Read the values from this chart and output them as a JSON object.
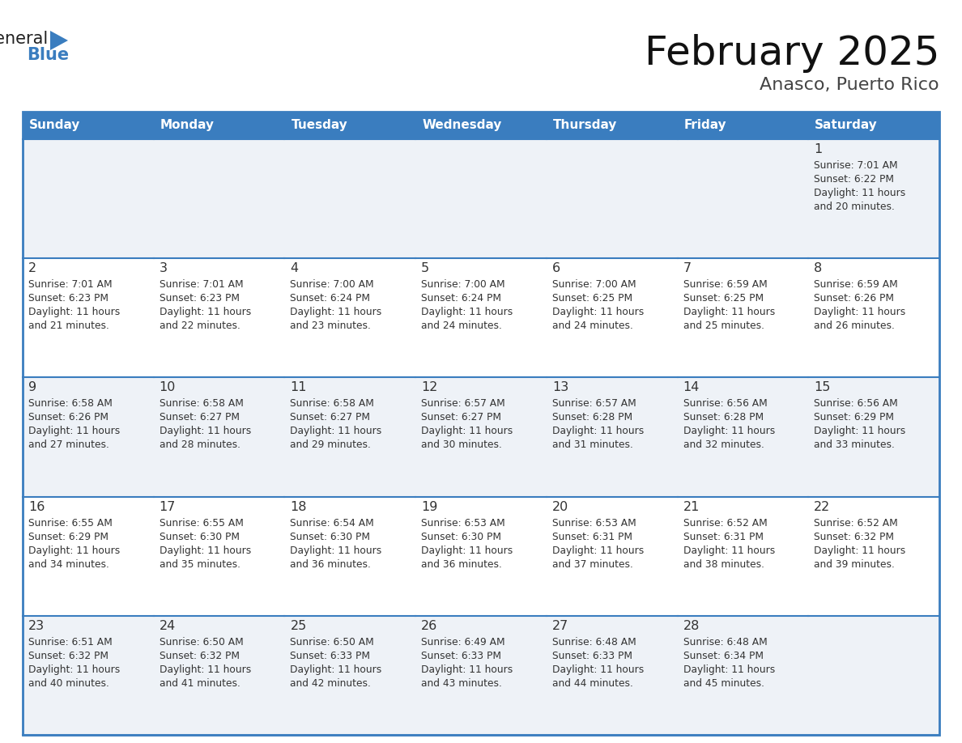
{
  "title": "February 2025",
  "subtitle": "Anasco, Puerto Rico",
  "header_bg_color": "#3a7dbf",
  "header_text_color": "#ffffff",
  "odd_row_bg": "#eef2f7",
  "even_row_bg": "#ffffff",
  "border_color": "#3a7dbf",
  "text_color": "#333333",
  "days_of_week": [
    "Sunday",
    "Monday",
    "Tuesday",
    "Wednesday",
    "Thursday",
    "Friday",
    "Saturday"
  ],
  "calendar": [
    [
      {
        "day": null,
        "sunrise": null,
        "sunset": null,
        "daylight": null
      },
      {
        "day": null,
        "sunrise": null,
        "sunset": null,
        "daylight": null
      },
      {
        "day": null,
        "sunrise": null,
        "sunset": null,
        "daylight": null
      },
      {
        "day": null,
        "sunrise": null,
        "sunset": null,
        "daylight": null
      },
      {
        "day": null,
        "sunrise": null,
        "sunset": null,
        "daylight": null
      },
      {
        "day": null,
        "sunrise": null,
        "sunset": null,
        "daylight": null
      },
      {
        "day": 1,
        "sunrise": "7:01 AM",
        "sunset": "6:22 PM",
        "daylight": "11 hours and 20 minutes."
      }
    ],
    [
      {
        "day": 2,
        "sunrise": "7:01 AM",
        "sunset": "6:23 PM",
        "daylight": "11 hours and 21 minutes."
      },
      {
        "day": 3,
        "sunrise": "7:01 AM",
        "sunset": "6:23 PM",
        "daylight": "11 hours and 22 minutes."
      },
      {
        "day": 4,
        "sunrise": "7:00 AM",
        "sunset": "6:24 PM",
        "daylight": "11 hours and 23 minutes."
      },
      {
        "day": 5,
        "sunrise": "7:00 AM",
        "sunset": "6:24 PM",
        "daylight": "11 hours and 24 minutes."
      },
      {
        "day": 6,
        "sunrise": "7:00 AM",
        "sunset": "6:25 PM",
        "daylight": "11 hours and 24 minutes."
      },
      {
        "day": 7,
        "sunrise": "6:59 AM",
        "sunset": "6:25 PM",
        "daylight": "11 hours and 25 minutes."
      },
      {
        "day": 8,
        "sunrise": "6:59 AM",
        "sunset": "6:26 PM",
        "daylight": "11 hours and 26 minutes."
      }
    ],
    [
      {
        "day": 9,
        "sunrise": "6:58 AM",
        "sunset": "6:26 PM",
        "daylight": "11 hours and 27 minutes."
      },
      {
        "day": 10,
        "sunrise": "6:58 AM",
        "sunset": "6:27 PM",
        "daylight": "11 hours and 28 minutes."
      },
      {
        "day": 11,
        "sunrise": "6:58 AM",
        "sunset": "6:27 PM",
        "daylight": "11 hours and 29 minutes."
      },
      {
        "day": 12,
        "sunrise": "6:57 AM",
        "sunset": "6:27 PM",
        "daylight": "11 hours and 30 minutes."
      },
      {
        "day": 13,
        "sunrise": "6:57 AM",
        "sunset": "6:28 PM",
        "daylight": "11 hours and 31 minutes."
      },
      {
        "day": 14,
        "sunrise": "6:56 AM",
        "sunset": "6:28 PM",
        "daylight": "11 hours and 32 minutes."
      },
      {
        "day": 15,
        "sunrise": "6:56 AM",
        "sunset": "6:29 PM",
        "daylight": "11 hours and 33 minutes."
      }
    ],
    [
      {
        "day": 16,
        "sunrise": "6:55 AM",
        "sunset": "6:29 PM",
        "daylight": "11 hours and 34 minutes."
      },
      {
        "day": 17,
        "sunrise": "6:55 AM",
        "sunset": "6:30 PM",
        "daylight": "11 hours and 35 minutes."
      },
      {
        "day": 18,
        "sunrise": "6:54 AM",
        "sunset": "6:30 PM",
        "daylight": "11 hours and 36 minutes."
      },
      {
        "day": 19,
        "sunrise": "6:53 AM",
        "sunset": "6:30 PM",
        "daylight": "11 hours and 36 minutes."
      },
      {
        "day": 20,
        "sunrise": "6:53 AM",
        "sunset": "6:31 PM",
        "daylight": "11 hours and 37 minutes."
      },
      {
        "day": 21,
        "sunrise": "6:52 AM",
        "sunset": "6:31 PM",
        "daylight": "11 hours and 38 minutes."
      },
      {
        "day": 22,
        "sunrise": "6:52 AM",
        "sunset": "6:32 PM",
        "daylight": "11 hours and 39 minutes."
      }
    ],
    [
      {
        "day": 23,
        "sunrise": "6:51 AM",
        "sunset": "6:32 PM",
        "daylight": "11 hours and 40 minutes."
      },
      {
        "day": 24,
        "sunrise": "6:50 AM",
        "sunset": "6:32 PM",
        "daylight": "11 hours and 41 minutes."
      },
      {
        "day": 25,
        "sunrise": "6:50 AM",
        "sunset": "6:33 PM",
        "daylight": "11 hours and 42 minutes."
      },
      {
        "day": 26,
        "sunrise": "6:49 AM",
        "sunset": "6:33 PM",
        "daylight": "11 hours and 43 minutes."
      },
      {
        "day": 27,
        "sunrise": "6:48 AM",
        "sunset": "6:33 PM",
        "daylight": "11 hours and 44 minutes."
      },
      {
        "day": 28,
        "sunrise": "6:48 AM",
        "sunset": "6:34 PM",
        "daylight": "11 hours and 45 minutes."
      },
      {
        "day": null,
        "sunrise": null,
        "sunset": null,
        "daylight": null
      }
    ]
  ],
  "fig_width": 11.88,
  "fig_height": 9.18,
  "dpi": 100
}
